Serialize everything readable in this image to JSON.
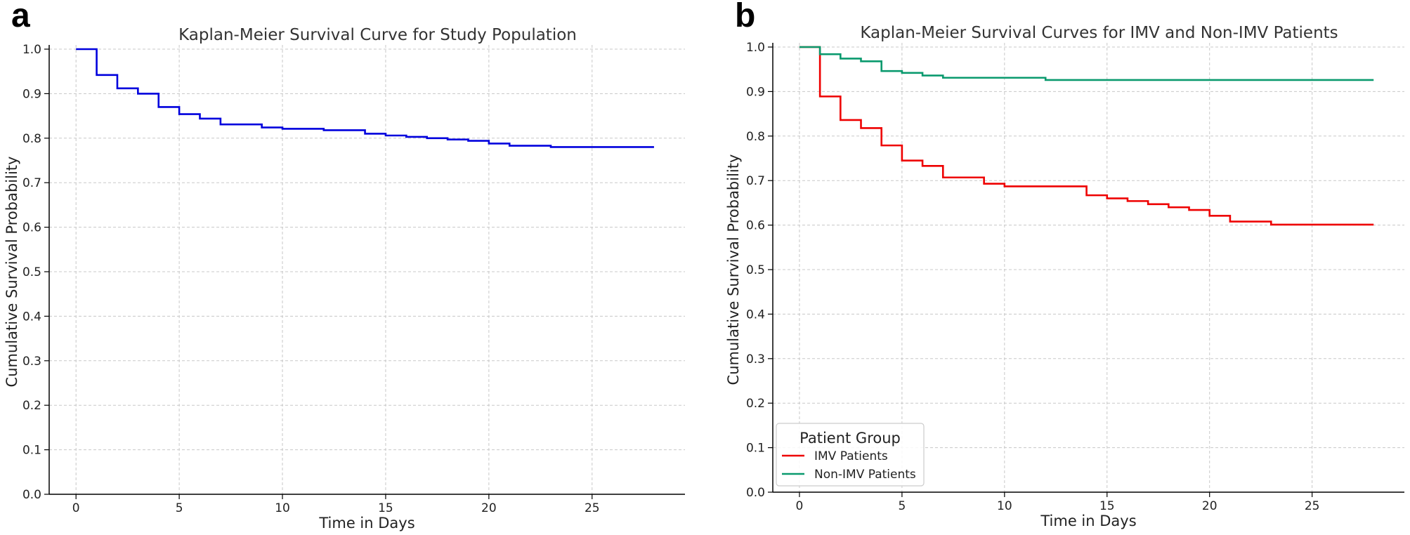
{
  "chart_data": [
    {
      "panel": "a",
      "type": "line",
      "step": "post",
      "title": "Kaplan-Meier Survival Curve for Study Population",
      "xlabel": "Time in Days",
      "ylabel": "Cumulative Survival Probability",
      "xlim": [
        -1.3,
        29.5
      ],
      "ylim": [
        0.0,
        1.0
      ],
      "xticks": [
        0,
        5,
        10,
        15,
        20,
        25
      ],
      "yticks": [
        0.0,
        0.1,
        0.2,
        0.3,
        0.4,
        0.5,
        0.6,
        0.7,
        0.8,
        0.9,
        1.0
      ],
      "xtick_labels": [
        "0",
        "5",
        "10",
        "15",
        "20",
        "25"
      ],
      "ytick_labels": [
        "0.0",
        "0.1",
        "0.2",
        "0.3",
        "0.4",
        "0.5",
        "0.6",
        "0.7",
        "0.8",
        "0.9",
        "1.0"
      ],
      "grid": true,
      "series": [
        {
          "name": "Study Population",
          "color": "#0000dd",
          "x": [
            0,
            1,
            2,
            3,
            4,
            5,
            6,
            7,
            9,
            10,
            12,
            14,
            15,
            16,
            17,
            18,
            19,
            20,
            21,
            23,
            28
          ],
          "y": [
            1.0,
            0.942,
            0.912,
            0.9,
            0.87,
            0.854,
            0.844,
            0.831,
            0.824,
            0.821,
            0.818,
            0.81,
            0.806,
            0.803,
            0.8,
            0.797,
            0.794,
            0.788,
            0.783,
            0.78,
            0.78
          ]
        }
      ]
    },
    {
      "panel": "b",
      "type": "line",
      "step": "post",
      "title": "Kaplan-Meier Survival Curves for IMV and Non-IMV Patients",
      "xlabel": "Time in Days",
      "ylabel": "Cumulative Survival Probability",
      "xlim": [
        -1.3,
        29.5
      ],
      "ylim": [
        0.0,
        1.0
      ],
      "xticks": [
        0,
        5,
        10,
        15,
        20,
        25
      ],
      "yticks": [
        0.0,
        0.1,
        0.2,
        0.3,
        0.4,
        0.5,
        0.6,
        0.7,
        0.8,
        0.9,
        1.0
      ],
      "xtick_labels": [
        "0",
        "5",
        "10",
        "15",
        "20",
        "25"
      ],
      "ytick_labels": [
        "0.0",
        "0.1",
        "0.2",
        "0.3",
        "0.4",
        "0.5",
        "0.6",
        "0.7",
        "0.8",
        "0.9",
        "1.0"
      ],
      "grid": true,
      "legend": {
        "title": "Patient Group",
        "position": "lower-left"
      },
      "series": [
        {
          "name": "IMV Patients",
          "color": "#ee0000",
          "x": [
            0,
            1,
            2,
            3,
            4,
            5,
            6,
            7,
            9,
            10,
            14,
            15,
            16,
            17,
            18,
            19,
            20,
            21,
            23,
            28
          ],
          "y": [
            1.0,
            0.889,
            0.836,
            0.818,
            0.779,
            0.745,
            0.733,
            0.707,
            0.693,
            0.687,
            0.667,
            0.66,
            0.654,
            0.647,
            0.64,
            0.634,
            0.621,
            0.608,
            0.601,
            0.601
          ]
        },
        {
          "name": "Non-IMV Patients",
          "color": "#0a9a6e",
          "x": [
            0,
            1,
            2,
            3,
            4,
            5,
            6,
            7,
            12,
            28
          ],
          "y": [
            1.0,
            0.984,
            0.974,
            0.968,
            0.946,
            0.942,
            0.936,
            0.931,
            0.926,
            0.926
          ]
        }
      ]
    }
  ],
  "panels": {
    "a": {
      "letter": "a"
    },
    "b": {
      "letter": "b"
    }
  }
}
